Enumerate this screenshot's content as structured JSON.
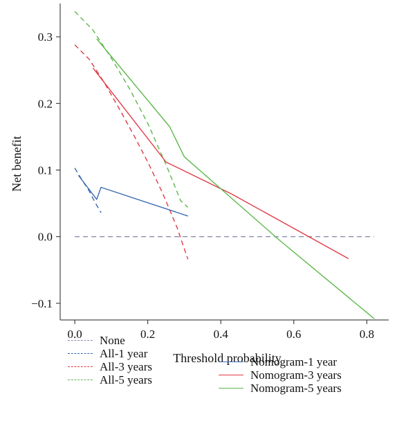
{
  "chart_data": {
    "type": "line",
    "xlabel": "Threshold probability",
    "ylabel": "Net benefit",
    "xlim": [
      -0.04,
      0.86
    ],
    "ylim": [
      -0.125,
      0.35
    ],
    "xticks": [
      0.0,
      0.2,
      0.4,
      0.6,
      0.8
    ],
    "xtick_labels": [
      "0.0",
      "0.2",
      "0.4",
      "0.6",
      "0.8"
    ],
    "yticks": [
      -0.1,
      0.0,
      0.1,
      0.2,
      0.3
    ],
    "ytick_labels": [
      "−0.1",
      "0.0",
      "0.1",
      "0.2",
      "0.3"
    ],
    "grid": false,
    "legend_position": "bottom",
    "series": [
      {
        "name": "None",
        "color": "#8a8fae",
        "dash": true,
        "points": [
          [
            0.0,
            0.0
          ],
          [
            0.82,
            0.0
          ]
        ]
      },
      {
        "name": "All-1 year",
        "color": "#3a6ab0",
        "dash": true,
        "points": [
          [
            0.0,
            0.103
          ],
          [
            0.02,
            0.085
          ],
          [
            0.04,
            0.068
          ],
          [
            0.055,
            0.052
          ],
          [
            0.072,
            0.036
          ]
        ]
      },
      {
        "name": "All-3 years",
        "color": "#e03a45",
        "dash": true,
        "points": [
          [
            0.0,
            0.288
          ],
          [
            0.04,
            0.266
          ],
          [
            0.08,
            0.232
          ],
          [
            0.12,
            0.194
          ],
          [
            0.16,
            0.154
          ],
          [
            0.2,
            0.112
          ],
          [
            0.24,
            0.066
          ],
          [
            0.28,
            0.014
          ],
          [
            0.31,
            -0.034
          ]
        ]
      },
      {
        "name": "All-5 years",
        "color": "#5cb84a",
        "dash": true,
        "points": [
          [
            0.0,
            0.338
          ],
          [
            0.05,
            0.31
          ],
          [
            0.1,
            0.268
          ],
          [
            0.15,
            0.222
          ],
          [
            0.2,
            0.17
          ],
          [
            0.25,
            0.108
          ],
          [
            0.29,
            0.054
          ],
          [
            0.31,
            0.044
          ]
        ]
      },
      {
        "name": "Nomogram-1 year",
        "color": "#3a6ab0",
        "dash": false,
        "points": [
          [
            0.01,
            0.092
          ],
          [
            0.06,
            0.056
          ],
          [
            0.072,
            0.074
          ],
          [
            0.31,
            0.031
          ]
        ]
      },
      {
        "name": "Nomogram-3 years",
        "color": "#e03a45",
        "dash": false,
        "points": [
          [
            0.05,
            0.253
          ],
          [
            0.25,
            0.112
          ],
          [
            0.43,
            0.064
          ],
          [
            0.75,
            -0.033
          ]
        ]
      },
      {
        "name": "Nomogram-5 years",
        "color": "#5cb84a",
        "dash": false,
        "points": [
          [
            0.06,
            0.297
          ],
          [
            0.26,
            0.165
          ],
          [
            0.3,
            0.12
          ],
          [
            0.56,
            -0.005
          ],
          [
            0.82,
            -0.123
          ]
        ]
      }
    ]
  }
}
